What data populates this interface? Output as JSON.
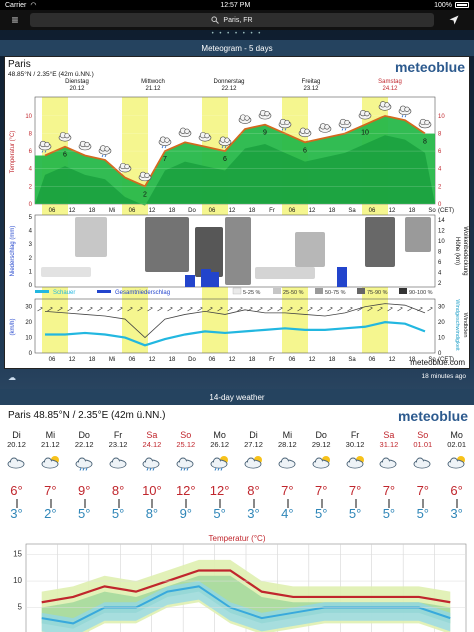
{
  "status": {
    "carrier": "Carrier",
    "time": "12:57 PM",
    "battery": "100%"
  },
  "search": {
    "value": "Paris, FR"
  },
  "page_indicator": "• • • • • • •",
  "meteogram": {
    "header": "Meteogram - 5 days",
    "title": "Paris",
    "subtitle": "48.85°N / 2.35°E (42m ü.NN.)",
    "brand": "meteoblue",
    "footer": "meteoblue.com",
    "days": [
      {
        "name": "Dienstag",
        "date": "20.12"
      },
      {
        "name": "Mittwoch",
        "date": "21.12"
      },
      {
        "name": "Donnerstag",
        "date": "22.12"
      },
      {
        "name": "Freitag",
        "date": "23.12"
      },
      {
        "name": "Samstag",
        "date": "24.12"
      }
    ],
    "hour_ticks": [
      "06",
      "12",
      "18",
      "Mi",
      "06",
      "12",
      "18",
      "Do",
      "06",
      "12",
      "18",
      "Fr",
      "06",
      "12",
      "18",
      "Sa",
      "06",
      "12",
      "18",
      "So"
    ],
    "cet": "(CET)",
    "temp_axis_label": "Temperatur (°C)",
    "temp_ticks": [
      "10",
      "8",
      "6",
      "4",
      "2",
      "0"
    ],
    "temp_right_ticks": [
      "10",
      "8",
      "6",
      "4",
      "2",
      "0"
    ],
    "precip_axis_label": "Niederschlag (mm)",
    "precip_ticks": [
      "5",
      "4",
      "3",
      "2",
      "1",
      "0"
    ],
    "height_axis_label": "Höhe (km)",
    "cloud_axis_label": "Wolkenbedeckung",
    "height_ticks": [
      "14",
      "12",
      "10",
      "8",
      "6",
      "4",
      "2"
    ],
    "wind_axis_label": "(km/h)",
    "wind_ticks": [
      "30",
      "20",
      "10",
      "0"
    ],
    "wind_right_label": "Windgeschwindigkeit",
    "wind_right_label2": "Windböen",
    "temp_labels": [
      "6",
      "2",
      "7",
      "6",
      "9",
      "6",
      "10",
      "8"
    ],
    "legend": {
      "showers": "Schauer",
      "total": "Gesamtniederschlag",
      "c1": "5-25 %",
      "c2": "25-50 %",
      "c3": "50-75 %",
      "c4": "75-90 %",
      "c5": "90-100 %"
    },
    "colors": {
      "temp_line": "#d2691e",
      "area": "#22bb44",
      "precip": "#2244cc",
      "showers": "#22b7e0",
      "highlight": "#f1f36a"
    }
  },
  "updated": "18 minutes ago",
  "forecast": {
    "header": "14-day weather",
    "title": "Paris  48.85°N / 2.35°E (42m ü.NN.)",
    "brand": "meteoblue",
    "days": [
      {
        "dow": "Di",
        "date": "20.12",
        "max": "6°",
        "min": "3°",
        "weekend": false,
        "icon": "cloud-icon"
      },
      {
        "dow": "Mi",
        "date": "21.12",
        "max": "7°",
        "min": "2°",
        "weekend": false,
        "icon": "sun-cloud-icon"
      },
      {
        "dow": "Do",
        "date": "22.12",
        "max": "9°",
        "min": "5°",
        "weekend": false,
        "icon": "rain-icon"
      },
      {
        "dow": "Fr",
        "date": "23.12",
        "max": "8°",
        "min": "5°",
        "weekend": false,
        "icon": "cloud-icon"
      },
      {
        "dow": "Sa",
        "date": "24.12",
        "max": "10°",
        "min": "8°",
        "weekend": true,
        "icon": "rain-icon"
      },
      {
        "dow": "So",
        "date": "25.12",
        "max": "12°",
        "min": "9°",
        "weekend": true,
        "icon": "rain-icon"
      },
      {
        "dow": "Mo",
        "date": "26.12",
        "max": "12°",
        "min": "5°",
        "weekend": false,
        "icon": "sun-rain-icon"
      },
      {
        "dow": "Di",
        "date": "27.12",
        "max": "8°",
        "min": "3°",
        "weekend": false,
        "icon": "sun-cloud-icon"
      },
      {
        "dow": "Mi",
        "date": "28.12",
        "max": "7°",
        "min": "4°",
        "weekend": false,
        "icon": "cloud-icon"
      },
      {
        "dow": "Do",
        "date": "29.12",
        "max": "7°",
        "min": "5°",
        "weekend": false,
        "icon": "sun-cloud-icon"
      },
      {
        "dow": "Fr",
        "date": "30.12",
        "max": "7°",
        "min": "5°",
        "weekend": false,
        "icon": "sun-cloud-icon"
      },
      {
        "dow": "Sa",
        "date": "31.12",
        "max": "7°",
        "min": "5°",
        "weekend": true,
        "icon": "cloud-icon"
      },
      {
        "dow": "So",
        "date": "01.01",
        "max": "7°",
        "min": "5°",
        "weekend": true,
        "icon": "cloud-icon"
      },
      {
        "dow": "Mo",
        "date": "02.01",
        "max": "6°",
        "min": "3°",
        "weekend": false,
        "icon": "sun-cloud-icon"
      }
    ],
    "temp_chart_title": "Temperatur (°C)",
    "temp_ticks": [
      "15",
      "10",
      "5"
    ]
  },
  "chart_data": [
    {
      "type": "area",
      "title": "Meteogram - 5 days",
      "ylabel": "Temperatur (°C)",
      "ylim": [
        0,
        11
      ],
      "x": [
        "Di 06",
        "Di 12",
        "Di 18",
        "Mi 00",
        "Mi 06",
        "Mi 12",
        "Mi 18",
        "Do 00",
        "Do 06",
        "Do 12",
        "Do 18",
        "Fr 00",
        "Fr 06",
        "Fr 12",
        "Fr 18",
        "Sa 00",
        "Sa 06",
        "Sa 12",
        "Sa 18",
        "So 00"
      ],
      "series": [
        {
          "name": "Temperatur",
          "values": [
            5.5,
            6.5,
            5.5,
            5,
            3,
            2,
            6,
            7,
            6.5,
            6,
            8.5,
            9,
            8,
            7,
            7.5,
            8,
            9,
            10,
            9.5,
            8
          ]
        }
      ]
    },
    {
      "type": "line",
      "title": "Temperatur (°C)",
      "x": [
        "20.12",
        "21.12",
        "22.12",
        "23.12",
        "24.12",
        "25.12",
        "26.12",
        "27.12",
        "28.12",
        "29.12",
        "30.12",
        "31.12",
        "01.01",
        "02.01"
      ],
      "ylim": [
        0,
        16
      ],
      "series": [
        {
          "name": "max",
          "values": [
            6,
            7,
            9,
            8,
            10,
            12,
            12,
            8,
            7,
            7,
            7,
            7,
            7,
            6
          ]
        },
        {
          "name": "min",
          "values": [
            3,
            2,
            5,
            5,
            8,
            9,
            5,
            3,
            4,
            5,
            5,
            5,
            5,
            3
          ]
        }
      ]
    }
  ]
}
